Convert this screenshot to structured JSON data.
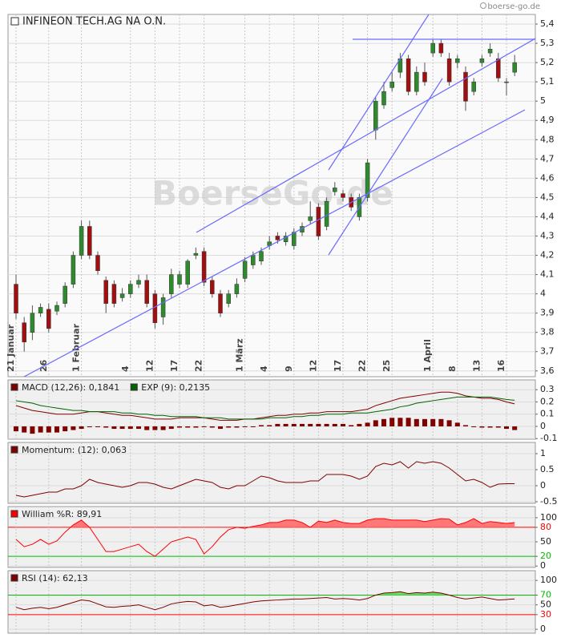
{
  "chart_data": [
    {
      "type": "candlestick",
      "title": "INFINEON TECH.AG NA O.N.",
      "source": "boerse-go.de",
      "watermark": "BoerseGo.de",
      "up_color": "#2d8a2d",
      "down_color": "#a01010",
      "grid": true,
      "categories": [
        "21 Januar",
        null,
        null,
        null,
        "26",
        null,
        null,
        null,
        "1 Februar",
        null,
        null,
        null,
        null,
        null,
        "4",
        null,
        null,
        "12",
        null,
        null,
        "17",
        null,
        null,
        "22",
        null,
        null,
        null,
        null,
        "1 März",
        null,
        null,
        "4",
        null,
        null,
        "9",
        null,
        null,
        "12",
        null,
        null,
        "17",
        null,
        null,
        "22",
        null,
        null,
        "25",
        null,
        null,
        null,
        null,
        "1 April",
        null,
        null,
        "8",
        null,
        null,
        "13",
        null,
        null,
        "16",
        null
      ],
      "open": [
        4.05,
        3.85,
        3.8,
        3.9,
        3.92,
        3.91,
        3.95,
        4.05,
        4.2,
        4.35,
        4.2,
        4.07,
        4.05,
        3.98,
        4.0,
        4.05,
        4.07,
        4.0,
        3.88,
        4.0,
        4.05,
        4.05,
        4.2,
        4.22,
        4.07,
        4.0,
        3.95,
        4.0,
        4.08,
        4.15,
        4.17,
        4.25,
        4.3,
        4.27,
        4.25,
        4.32,
        4.38,
        4.45,
        4.35,
        4.53,
        4.52,
        4.5,
        4.4,
        4.5,
        4.85,
        4.98,
        5.07,
        5.15,
        5.22,
        5.05,
        5.15,
        5.25,
        5.3,
        5.22,
        5.2,
        5.15,
        5.05,
        5.2,
        5.25,
        5.22,
        5.1,
        5.15
      ],
      "high": [
        4.1,
        3.88,
        3.94,
        3.95,
        3.95,
        3.96,
        4.06,
        4.22,
        4.38,
        4.38,
        4.22,
        4.09,
        4.07,
        4.03,
        4.07,
        4.1,
        4.1,
        4.02,
        4.0,
        4.13,
        4.12,
        4.18,
        4.24,
        4.24,
        4.09,
        4.02,
        4.02,
        4.08,
        4.19,
        4.22,
        4.24,
        4.3,
        4.32,
        4.32,
        4.34,
        4.37,
        4.48,
        4.47,
        4.5,
        4.58,
        4.54,
        4.52,
        4.52,
        4.7,
        5.02,
        5.1,
        5.15,
        5.25,
        5.24,
        5.18,
        5.2,
        5.32,
        5.32,
        5.25,
        5.24,
        5.18,
        5.12,
        5.24,
        5.3,
        5.25,
        5.12,
        5.24
      ],
      "low": [
        3.87,
        3.7,
        3.76,
        3.88,
        3.8,
        3.89,
        3.93,
        4.03,
        4.18,
        4.18,
        4.1,
        3.9,
        3.93,
        3.96,
        3.98,
        4.03,
        3.93,
        3.82,
        3.84,
        3.98,
        4.03,
        4.03,
        4.18,
        4.04,
        3.98,
        3.88,
        3.93,
        3.98,
        4.06,
        4.13,
        4.15,
        4.23,
        4.26,
        4.25,
        4.23,
        4.3,
        4.36,
        4.28,
        4.33,
        4.51,
        4.48,
        4.43,
        4.38,
        4.48,
        4.8,
        4.96,
        5.05,
        5.12,
        5.03,
        5.03,
        5.08,
        5.23,
        5.23,
        5.08,
        5.17,
        4.95,
        5.03,
        5.18,
        5.23,
        5.1,
        5.03,
        5.13
      ],
      "close": [
        3.9,
        3.75,
        3.9,
        3.93,
        3.82,
        3.94,
        4.04,
        4.2,
        4.35,
        4.2,
        4.12,
        3.95,
        3.95,
        4.0,
        4.05,
        4.07,
        3.95,
        3.85,
        3.98,
        4.1,
        4.1,
        4.17,
        4.21,
        4.06,
        4.0,
        3.9,
        4.0,
        4.05,
        4.17,
        4.2,
        4.22,
        4.27,
        4.28,
        4.3,
        4.32,
        4.35,
        4.4,
        4.3,
        4.48,
        4.55,
        4.5,
        4.45,
        4.5,
        4.68,
        5.0,
        5.05,
        5.1,
        5.22,
        5.05,
        5.15,
        5.1,
        5.3,
        5.25,
        5.1,
        5.22,
        5.0,
        5.1,
        5.22,
        5.27,
        5.12,
        5.1,
        5.2
      ],
      "ylim": [
        3.57,
        5.45
      ],
      "yticks": [
        {
          "value": 3.6,
          "label": "3,6"
        },
        {
          "value": 3.7,
          "label": "3,7"
        },
        {
          "value": 3.8,
          "label": "3,8"
        },
        {
          "value": 3.9,
          "label": "3,9"
        },
        {
          "value": 4,
          "label": "4"
        },
        {
          "value": 4.1,
          "label": "4,1"
        },
        {
          "value": 4.2,
          "label": "4,2"
        },
        {
          "value": 4.3,
          "label": "4,3"
        },
        {
          "value": 4.4,
          "label": "4,4"
        },
        {
          "value": 4.5,
          "label": "4,5"
        },
        {
          "value": 4.6,
          "label": "4,6"
        },
        {
          "value": 4.7,
          "label": "4,7"
        },
        {
          "value": 4.8,
          "label": "4,8"
        },
        {
          "value": 4.9,
          "label": "4,9"
        },
        {
          "value": 5,
          "label": "5"
        },
        {
          "value": 5.1,
          "label": "5,1"
        },
        {
          "value": 5.2,
          "label": "5,2"
        },
        {
          "value": 5.3,
          "label": "5,3"
        },
        {
          "value": 5.4,
          "label": "5,4"
        }
      ]
    },
    {
      "type": "line",
      "grid": true,
      "series": [
        {
          "name": "MACD (12,26): 0,1841",
          "color": "#800000",
          "values": [
            0.17,
            0.15,
            0.13,
            0.12,
            0.11,
            0.1,
            0.1,
            0.1,
            0.11,
            0.12,
            0.12,
            0.11,
            0.1,
            0.09,
            0.09,
            0.08,
            0.07,
            0.06,
            0.06,
            0.06,
            0.07,
            0.07,
            0.07,
            0.07,
            0.06,
            0.05,
            0.05,
            0.05,
            0.06,
            0.06,
            0.07,
            0.08,
            0.09,
            0.09,
            0.1,
            0.1,
            0.11,
            0.11,
            0.12,
            0.12,
            0.12,
            0.12,
            0.13,
            0.14,
            0.17,
            0.19,
            0.21,
            0.23,
            0.24,
            0.25,
            0.26,
            0.27,
            0.28,
            0.28,
            0.27,
            0.25,
            0.24,
            0.23,
            0.23,
            0.22,
            0.2,
            0.1841
          ]
        },
        {
          "name": "EXP (9): 0,2135",
          "color": "#006400",
          "values": [
            0.21,
            0.2,
            0.19,
            0.17,
            0.16,
            0.15,
            0.14,
            0.13,
            0.13,
            0.12,
            0.12,
            0.12,
            0.12,
            0.11,
            0.11,
            0.1,
            0.1,
            0.09,
            0.09,
            0.08,
            0.08,
            0.08,
            0.08,
            0.07,
            0.07,
            0.07,
            0.06,
            0.06,
            0.06,
            0.06,
            0.06,
            0.07,
            0.07,
            0.07,
            0.08,
            0.08,
            0.09,
            0.09,
            0.1,
            0.1,
            0.1,
            0.11,
            0.11,
            0.11,
            0.12,
            0.13,
            0.14,
            0.16,
            0.17,
            0.19,
            0.2,
            0.21,
            0.22,
            0.23,
            0.24,
            0.24,
            0.24,
            0.24,
            0.24,
            0.23,
            0.22,
            0.2135
          ]
        }
      ],
      "histogram": {
        "color": "#800000",
        "values": [
          -0.04,
          -0.05,
          -0.06,
          -0.05,
          -0.05,
          -0.05,
          -0.04,
          -0.03,
          -0.02,
          0.0,
          0.0,
          -0.01,
          -0.02,
          -0.02,
          -0.02,
          -0.02,
          -0.03,
          -0.03,
          -0.03,
          -0.02,
          -0.01,
          -0.01,
          -0.01,
          0.0,
          -0.01,
          -0.02,
          -0.01,
          -0.01,
          0.0,
          0.0,
          0.01,
          0.01,
          0.02,
          0.02,
          0.02,
          0.02,
          0.02,
          0.02,
          0.02,
          0.02,
          0.02,
          0.01,
          0.02,
          0.03,
          0.05,
          0.06,
          0.07,
          0.07,
          0.07,
          0.06,
          0.06,
          0.06,
          0.06,
          0.05,
          0.03,
          0.01,
          0.0,
          -0.01,
          -0.01,
          -0.01,
          -0.02,
          -0.03
        ]
      },
      "ylim": [
        -0.105,
        0.38
      ],
      "yticks": [
        0.3,
        0.2,
        0.1,
        0,
        -0.1
      ]
    },
    {
      "type": "line",
      "grid": true,
      "series": [
        {
          "name": "Momentum: (12): 0,063",
          "color": "#800000",
          "values": [
            -0.3,
            -0.35,
            -0.3,
            -0.25,
            -0.2,
            -0.2,
            -0.1,
            -0.1,
            0,
            0.2,
            0.1,
            0.05,
            0,
            -0.05,
            0,
            0.1,
            0.1,
            0.05,
            -0.05,
            -0.1,
            0,
            0.1,
            0.2,
            0.15,
            0.1,
            -0.05,
            -0.1,
            0,
            0,
            0.15,
            0.3,
            0.25,
            0.15,
            0.1,
            0.1,
            0.1,
            0.15,
            0.15,
            0.35,
            0.35,
            0.35,
            0.3,
            0.2,
            0.3,
            0.6,
            0.7,
            0.65,
            0.75,
            0.55,
            0.75,
            0.7,
            0.75,
            0.7,
            0.55,
            0.35,
            0.15,
            0.2,
            0.1,
            -0.05,
            0.05,
            0.063,
            0.063
          ]
        }
      ],
      "ylim": [
        -0.55,
        1.35
      ],
      "yticks": [
        1,
        0.5,
        0,
        -0.5
      ]
    },
    {
      "type": "line",
      "grid": true,
      "series": [
        {
          "name": "William %R: 89,91",
          "color": "#ff0000",
          "values": [
            55,
            40,
            45,
            55,
            45,
            52,
            70,
            85,
            95,
            80,
            55,
            30,
            30,
            35,
            40,
            45,
            30,
            20,
            35,
            50,
            55,
            60,
            55,
            25,
            40,
            60,
            75,
            80,
            78,
            82,
            85,
            90,
            90,
            95,
            95,
            90,
            80,
            93,
            90,
            95,
            90,
            88,
            88,
            95,
            98,
            98,
            95,
            95,
            95,
            95,
            92,
            95,
            98,
            97,
            85,
            90,
            98,
            88,
            92,
            90,
            88,
            89.91
          ]
        }
      ],
      "levels": [
        {
          "value": 80,
          "color": "#ff0000"
        },
        {
          "value": 20,
          "color": "#00bb00"
        }
      ],
      "fill_above": 80,
      "fill_color": "#ff7777",
      "ylim": [
        -3,
        123
      ],
      "yticks": [
        100,
        80,
        50,
        20,
        0
      ]
    },
    {
      "type": "line",
      "grid": true,
      "series": [
        {
          "name": "RSI (14): 62,13",
          "color": "#800000",
          "values": [
            45,
            40,
            43,
            45,
            42,
            45,
            50,
            55,
            60,
            58,
            52,
            46,
            45,
            47,
            48,
            50,
            45,
            40,
            45,
            52,
            55,
            57,
            56,
            48,
            50,
            45,
            47,
            50,
            53,
            56,
            58,
            59,
            60,
            61,
            62,
            62,
            63,
            64,
            65,
            62,
            63,
            62,
            60,
            63,
            70,
            74,
            75,
            77,
            73,
            75,
            74,
            76,
            74,
            70,
            65,
            62,
            64,
            66,
            63,
            60,
            61,
            62.13
          ]
        }
      ],
      "levels": [
        {
          "value": 70,
          "color": "#00bb00"
        },
        {
          "value": 30,
          "color": "#ff0000"
        }
      ],
      "fill_above": 70,
      "fill_color": "#66dd66",
      "ylim": [
        -8,
        120
      ],
      "yticks": [
        100,
        70,
        50,
        30,
        0
      ]
    }
  ]
}
